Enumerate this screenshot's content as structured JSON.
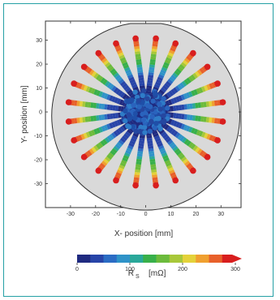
{
  "chart_data": {
    "type": "scatter",
    "description_style": "radial wafer map",
    "xlabel": "X- position  [mm]",
    "ylabel": "Y- position  [mm]",
    "xlim": [
      -40,
      38
    ],
    "ylim": [
      -40,
      38
    ],
    "x_ticks": [
      -30,
      -20,
      -10,
      0,
      10,
      20,
      30
    ],
    "y_ticks": [
      -30,
      -20,
      -10,
      0,
      10,
      20,
      30
    ],
    "wafer_radius_mm": 37.5,
    "flat_y_mm": 37,
    "spokes": 24,
    "spoke_length_mm": 31,
    "radial_profile": [
      {
        "r": 0,
        "value": 10
      },
      {
        "r": 10,
        "value": 20
      },
      {
        "r": 15,
        "value": 45
      },
      {
        "r": 20,
        "value": 120
      },
      {
        "r": 25,
        "value": 190
      },
      {
        "r": 28,
        "value": 250
      },
      {
        "r": 31,
        "value": 300
      }
    ],
    "colorbar": {
      "label_main": "R",
      "label_sub": "S",
      "unit": "[mΩ]",
      "range": [
        0,
        300
      ],
      "ticks": [
        0,
        100,
        200,
        300
      ],
      "colors": [
        "#1f2a80",
        "#2744a8",
        "#2b6cc4",
        "#2f93c8",
        "#2aa89a",
        "#38b04a",
        "#6cbb3c",
        "#a8c83a",
        "#e4d23a",
        "#f0a030",
        "#e8602a",
        "#d81e1e"
      ]
    },
    "colors": {
      "wafer_fill": "#d9d9d9",
      "wafer_stroke": "#333333",
      "frame_border": "#25a0a5"
    }
  }
}
